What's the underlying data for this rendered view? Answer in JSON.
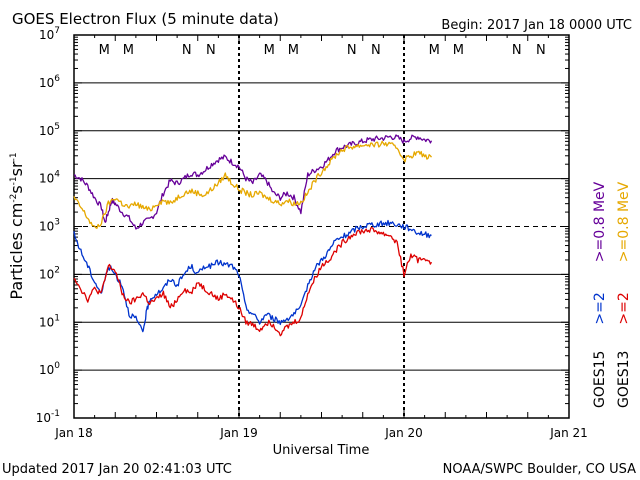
{
  "chart_data": {
    "type": "line",
    "title": "GOES Electron Flux (5 minute data)",
    "begin_label": "Begin: 2017 Jan 18 0000 UTC",
    "xlabel": "Universal Time",
    "ylabel": "Particles cm-2s-1sr-1",
    "ylabel_parts": {
      "base": "Particles cm",
      "e1": "-2",
      "mid1": "s",
      "e2": "-1",
      "mid2": "sr",
      "e3": "-1"
    },
    "yscale": "log",
    "ylim": [
      0.1,
      10000000
    ],
    "xlim": [
      0,
      72
    ],
    "x_unit": "hours since 2017 Jan 18 0000 UTC",
    "x_ticks": [
      {
        "x": 0,
        "label": "Jan 18"
      },
      {
        "x": 24,
        "label": "Jan 19"
      },
      {
        "x": 48,
        "label": "Jan 20"
      },
      {
        "x": 72,
        "label": "Jan 21"
      }
    ],
    "y_ticks": [
      {
        "exp": "7"
      },
      {
        "exp": "6"
      },
      {
        "exp": "5"
      },
      {
        "exp": "4"
      },
      {
        "exp": "3"
      },
      {
        "exp": "2"
      },
      {
        "exp": "1"
      },
      {
        "exp": "0"
      },
      {
        "exp": "-1"
      }
    ],
    "threshold": 1000,
    "colors": {
      "goes15_low": "#0033cc",
      "goes13_low": "#dd0000",
      "goes15_high": "#660099",
      "goes13_high": "#e6a800"
    },
    "legend": {
      "placement": "right",
      "goes15": "GOES15",
      "goes13": "GOES13",
      "labels": [
        {
          "text": ">=2",
          "color": "#0033cc"
        },
        {
          "text": ">=2",
          "color": "#dd0000"
        },
        {
          "text": ">=0.8 MeV",
          "color": "#660099"
        },
        {
          "text": ">=0.8 MeV",
          "color": "#e6a800"
        }
      ]
    },
    "mn_markers": [
      {
        "t": 4.4,
        "letter": "M",
        "color": "#dd0000"
      },
      {
        "t": 7.9,
        "letter": "M",
        "color": "#0033cc"
      },
      {
        "t": 16.4,
        "letter": "N",
        "color": "#dd0000"
      },
      {
        "t": 19.9,
        "letter": "N",
        "color": "#0033cc"
      },
      {
        "t": 28.4,
        "letter": "M",
        "color": "#dd0000"
      },
      {
        "t": 31.9,
        "letter": "M",
        "color": "#0033cc"
      },
      {
        "t": 40.4,
        "letter": "N",
        "color": "#dd0000"
      },
      {
        "t": 43.9,
        "letter": "N",
        "color": "#0033cc"
      },
      {
        "t": 52.4,
        "letter": "M",
        "color": "#dd0000"
      },
      {
        "t": 55.9,
        "letter": "M",
        "color": "#0033cc"
      },
      {
        "t": 64.4,
        "letter": "N",
        "color": "#dd0000"
      },
      {
        "t": 67.9,
        "letter": "N",
        "color": "#0033cc"
      }
    ],
    "series": [
      {
        "name": "GOES15 >=0.8 MeV",
        "color": "#660099",
        "points": [
          [
            0,
            12000
          ],
          [
            1,
            10000
          ],
          [
            2,
            7000
          ],
          [
            3,
            4000
          ],
          [
            4,
            2500
          ],
          [
            4.5,
            1200
          ],
          [
            5,
            2000
          ],
          [
            5.5,
            3500
          ],
          [
            6,
            3000
          ],
          [
            7,
            2000
          ],
          [
            8,
            1500
          ],
          [
            9,
            900
          ],
          [
            10,
            1200
          ],
          [
            11,
            1400
          ],
          [
            12,
            2000
          ],
          [
            13,
            5000
          ],
          [
            14,
            9000
          ],
          [
            15,
            8000
          ],
          [
            16,
            10000
          ],
          [
            17,
            13000
          ],
          [
            18,
            12000
          ],
          [
            19,
            15000
          ],
          [
            20,
            20000
          ],
          [
            21,
            25000
          ],
          [
            22,
            28000
          ],
          [
            23,
            22000
          ],
          [
            24,
            18000
          ],
          [
            25,
            10000
          ],
          [
            26,
            8000
          ],
          [
            27,
            12000
          ],
          [
            28,
            9000
          ],
          [
            29,
            5000
          ],
          [
            30,
            4000
          ],
          [
            31,
            5000
          ],
          [
            32,
            4000
          ],
          [
            33,
            2000
          ],
          [
            34,
            12000
          ],
          [
            35,
            15000
          ],
          [
            36,
            18000
          ],
          [
            37,
            25000
          ],
          [
            38,
            38000
          ],
          [
            39,
            45000
          ],
          [
            40,
            50000
          ],
          [
            41,
            55000
          ],
          [
            42,
            60000
          ],
          [
            43,
            65000
          ],
          [
            44,
            68000
          ],
          [
            45,
            70000
          ],
          [
            46,
            75000
          ],
          [
            47,
            72000
          ],
          [
            48,
            60000
          ],
          [
            49,
            70000
          ],
          [
            50,
            75000
          ],
          [
            51,
            65000
          ],
          [
            52,
            62000
          ]
        ]
      },
      {
        "name": "GOES13 >=0.8 MeV",
        "color": "#e6a800",
        "points": [
          [
            0,
            4000
          ],
          [
            1,
            2500
          ],
          [
            2,
            1500
          ],
          [
            3,
            900
          ],
          [
            4,
            1200
          ],
          [
            5,
            3000
          ],
          [
            6,
            4000
          ],
          [
            7,
            3000
          ],
          [
            8,
            2500
          ],
          [
            9,
            3000
          ],
          [
            10,
            2500
          ],
          [
            11,
            2200
          ],
          [
            12,
            3000
          ],
          [
            13,
            3500
          ],
          [
            14,
            3000
          ],
          [
            15,
            4000
          ],
          [
            16,
            5000
          ],
          [
            17,
            5500
          ],
          [
            18,
            5000
          ],
          [
            19,
            4500
          ],
          [
            20,
            6000
          ],
          [
            21,
            8000
          ],
          [
            22,
            12000
          ],
          [
            23,
            8000
          ],
          [
            24,
            6000
          ],
          [
            25,
            5000
          ],
          [
            26,
            4500
          ],
          [
            27,
            5000
          ],
          [
            28,
            4000
          ],
          [
            29,
            3500
          ],
          [
            30,
            3000
          ],
          [
            31,
            3500
          ],
          [
            32,
            3000
          ],
          [
            33,
            3200
          ],
          [
            34,
            5000
          ],
          [
            35,
            9000
          ],
          [
            36,
            14000
          ],
          [
            37,
            20000
          ],
          [
            38,
            30000
          ],
          [
            39,
            40000
          ],
          [
            40,
            45000
          ],
          [
            41,
            48000
          ],
          [
            42,
            50000
          ],
          [
            43,
            52000
          ],
          [
            44,
            50000
          ],
          [
            45,
            55000
          ],
          [
            46,
            50000
          ],
          [
            47,
            45000
          ],
          [
            48,
            25000
          ],
          [
            49,
            30000
          ],
          [
            50,
            35000
          ],
          [
            51,
            30000
          ],
          [
            52,
            28000
          ]
        ]
      },
      {
        "name": "GOES15 >=2",
        "color": "#0033cc",
        "points": [
          [
            0,
            700
          ],
          [
            1,
            300
          ],
          [
            2,
            150
          ],
          [
            3,
            70
          ],
          [
            4,
            40
          ],
          [
            5,
            150
          ],
          [
            6,
            100
          ],
          [
            7,
            60
          ],
          [
            8,
            15
          ],
          [
            9,
            12
          ],
          [
            10,
            6
          ],
          [
            10.5,
            15
          ],
          [
            11,
            30
          ],
          [
            12,
            40
          ],
          [
            13,
            50
          ],
          [
            14,
            80
          ],
          [
            15,
            60
          ],
          [
            16,
            100
          ],
          [
            17,
            150
          ],
          [
            18,
            100
          ],
          [
            19,
            150
          ],
          [
            20,
            150
          ],
          [
            21,
            180
          ],
          [
            22,
            160
          ],
          [
            23,
            150
          ],
          [
            24,
            100
          ],
          [
            25,
            20
          ],
          [
            26,
            15
          ],
          [
            27,
            10
          ],
          [
            28,
            15
          ],
          [
            29,
            12
          ],
          [
            30,
            10
          ],
          [
            31,
            12
          ],
          [
            32,
            15
          ],
          [
            33,
            20
          ],
          [
            34,
            60
          ],
          [
            35,
            130
          ],
          [
            36,
            200
          ],
          [
            37,
            300
          ],
          [
            38,
            500
          ],
          [
            39,
            600
          ],
          [
            40,
            700
          ],
          [
            41,
            900
          ],
          [
            42,
            1000
          ],
          [
            43,
            1100
          ],
          [
            44,
            1100
          ],
          [
            45,
            1150
          ],
          [
            46,
            1200
          ],
          [
            47,
            1100
          ],
          [
            48,
            1000
          ],
          [
            49,
            900
          ],
          [
            50,
            750
          ],
          [
            51,
            700
          ],
          [
            52,
            650
          ]
        ]
      },
      {
        "name": "GOES13 >=2",
        "color": "#dd0000",
        "points": [
          [
            0,
            90
          ],
          [
            1,
            50
          ],
          [
            2,
            30
          ],
          [
            3,
            50
          ],
          [
            4,
            40
          ],
          [
            5,
            150
          ],
          [
            6,
            120
          ],
          [
            7,
            40
          ],
          [
            8,
            25
          ],
          [
            9,
            30
          ],
          [
            10,
            40
          ],
          [
            11,
            25
          ],
          [
            12,
            30
          ],
          [
            13,
            40
          ],
          [
            14,
            20
          ],
          [
            15,
            30
          ],
          [
            16,
            50
          ],
          [
            17,
            40
          ],
          [
            18,
            70
          ],
          [
            19,
            50
          ],
          [
            20,
            40
          ],
          [
            21,
            30
          ],
          [
            22,
            40
          ],
          [
            23,
            30
          ],
          [
            24,
            20
          ],
          [
            25,
            10
          ],
          [
            26,
            9
          ],
          [
            27,
            7
          ],
          [
            28,
            10
          ],
          [
            29,
            9
          ],
          [
            30,
            6
          ],
          [
            31,
            8
          ],
          [
            32,
            10
          ],
          [
            33,
            12
          ],
          [
            34,
            40
          ],
          [
            35,
            80
          ],
          [
            36,
            150
          ],
          [
            37,
            200
          ],
          [
            38,
            300
          ],
          [
            39,
            450
          ],
          [
            40,
            600
          ],
          [
            41,
            750
          ],
          [
            42,
            800
          ],
          [
            43,
            850
          ],
          [
            44,
            800
          ],
          [
            45,
            700
          ],
          [
            46,
            650
          ],
          [
            47,
            450
          ],
          [
            48,
            100
          ],
          [
            49,
            250
          ],
          [
            50,
            200
          ],
          [
            51,
            220
          ],
          [
            52,
            180
          ]
        ]
      }
    ]
  },
  "footer": {
    "updated": "Updated 2017 Jan 20 02:41:03 UTC",
    "credit": "NOAA/SWPC Boulder, CO USA"
  }
}
